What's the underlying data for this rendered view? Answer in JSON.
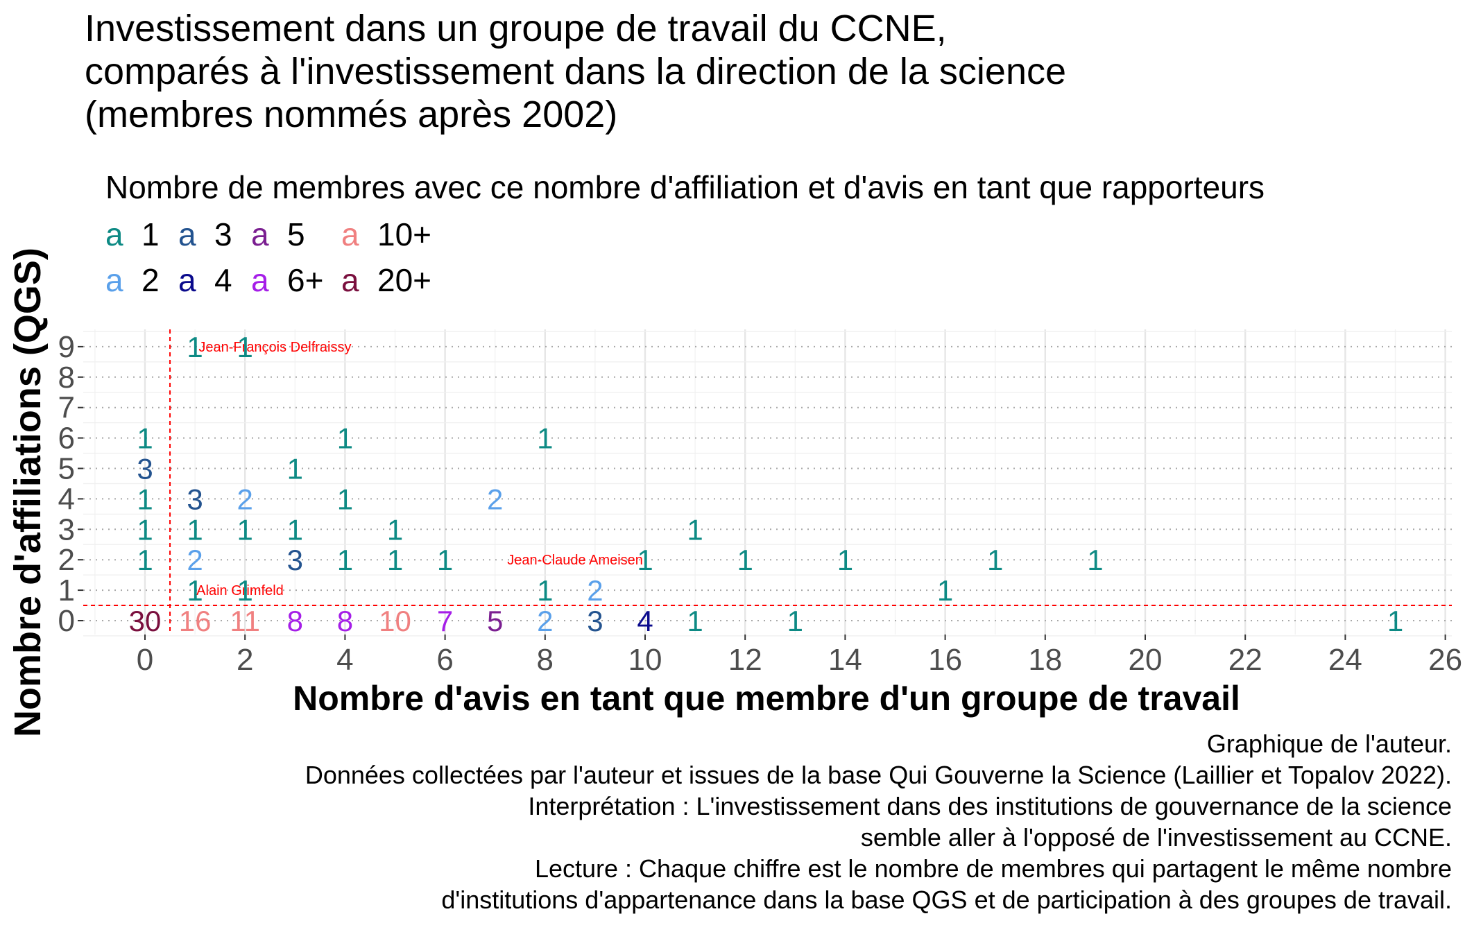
{
  "title_lines": [
    "Investissement dans un groupe de travail du CCNE,",
    "comparés à l'investissement dans la direction de la science",
    "(membres nommés après 2002)"
  ],
  "legend": {
    "title": "Nombre de membres avec ce nombre d'affiliation et d'avis en tant que rapporteurs",
    "key_glyph": "a",
    "items": [
      {
        "label": "1",
        "color": "#0d8a84"
      },
      {
        "label": "2",
        "color": "#5aa0ea"
      },
      {
        "label": "3",
        "color": "#23538f"
      },
      {
        "label": "4",
        "color": "#0a0a8c"
      },
      {
        "label": "5",
        "color": "#7b1f91"
      },
      {
        "label": "6+",
        "color": "#a51ee8"
      },
      {
        "label": "10+",
        "color": "#f08080"
      },
      {
        "label": "20+",
        "color": "#7a0f3e"
      }
    ]
  },
  "caption_lines": [
    "Graphique de l'auteur.",
    "Données collectées par l'auteur et issues de la base Qui Gouverne la Science (Laillier et Topalov 2022).",
    "Interprétation : L'investissement dans des institutions de gouvernance de la science",
    "semble aller à l'opposé de l'investissement au CCNE.",
    "Lecture : Chaque chiffre est le nombre de membres qui partagent le même nombre",
    "d'institutions d'appartenance dans la base QGS et de participation à des groupes de travail."
  ],
  "chart_data": {
    "type": "scatter",
    "xlabel": "Nombre d'avis en tant que membre d'un groupe de travail",
    "ylabel": "Nombre d'affiliations (QGS)",
    "xlim": [
      -1,
      26.2
    ],
    "ylim": [
      -0.5,
      9.5
    ],
    "xticks": [
      0,
      2,
      4,
      6,
      8,
      10,
      12,
      14,
      16,
      18,
      20,
      22,
      24,
      26
    ],
    "yticks": [
      0,
      1,
      2,
      3,
      4,
      5,
      6,
      7,
      8,
      9
    ],
    "reference_lines": {
      "vertical_x": 0.5,
      "horizontal_y": 0.5,
      "color": "#ff0000"
    },
    "points": [
      {
        "x": 1,
        "y": 9,
        "n": 1,
        "cat": "1"
      },
      {
        "x": 2,
        "y": 9,
        "n": 1,
        "cat": "1"
      },
      {
        "x": 0,
        "y": 6,
        "n": 1,
        "cat": "1"
      },
      {
        "x": 4,
        "y": 6,
        "n": 1,
        "cat": "1"
      },
      {
        "x": 8,
        "y": 6,
        "n": 1,
        "cat": "1"
      },
      {
        "x": 0,
        "y": 5,
        "n": 3,
        "cat": "3"
      },
      {
        "x": 3,
        "y": 5,
        "n": 1,
        "cat": "1"
      },
      {
        "x": 0,
        "y": 4,
        "n": 1,
        "cat": "1"
      },
      {
        "x": 1,
        "y": 4,
        "n": 3,
        "cat": "3"
      },
      {
        "x": 2,
        "y": 4,
        "n": 2,
        "cat": "2"
      },
      {
        "x": 4,
        "y": 4,
        "n": 1,
        "cat": "1"
      },
      {
        "x": 7,
        "y": 4,
        "n": 2,
        "cat": "2"
      },
      {
        "x": 0,
        "y": 3,
        "n": 1,
        "cat": "1"
      },
      {
        "x": 1,
        "y": 3,
        "n": 1,
        "cat": "1"
      },
      {
        "x": 2,
        "y": 3,
        "n": 1,
        "cat": "1"
      },
      {
        "x": 3,
        "y": 3,
        "n": 1,
        "cat": "1"
      },
      {
        "x": 5,
        "y": 3,
        "n": 1,
        "cat": "1"
      },
      {
        "x": 11,
        "y": 3,
        "n": 1,
        "cat": "1"
      },
      {
        "x": 0,
        "y": 2,
        "n": 1,
        "cat": "1"
      },
      {
        "x": 1,
        "y": 2,
        "n": 2,
        "cat": "2"
      },
      {
        "x": 3,
        "y": 2,
        "n": 3,
        "cat": "3"
      },
      {
        "x": 4,
        "y": 2,
        "n": 1,
        "cat": "1"
      },
      {
        "x": 5,
        "y": 2,
        "n": 1,
        "cat": "1"
      },
      {
        "x": 6,
        "y": 2,
        "n": 1,
        "cat": "1"
      },
      {
        "x": 10,
        "y": 2,
        "n": 1,
        "cat": "1"
      },
      {
        "x": 12,
        "y": 2,
        "n": 1,
        "cat": "1"
      },
      {
        "x": 14,
        "y": 2,
        "n": 1,
        "cat": "1"
      },
      {
        "x": 17,
        "y": 2,
        "n": 1,
        "cat": "1"
      },
      {
        "x": 19,
        "y": 2,
        "n": 1,
        "cat": "1"
      },
      {
        "x": 1,
        "y": 1,
        "n": 1,
        "cat": "1"
      },
      {
        "x": 2,
        "y": 1,
        "n": 1,
        "cat": "1"
      },
      {
        "x": 8,
        "y": 1,
        "n": 1,
        "cat": "1"
      },
      {
        "x": 9,
        "y": 1,
        "n": 2,
        "cat": "2"
      },
      {
        "x": 16,
        "y": 1,
        "n": 1,
        "cat": "1"
      },
      {
        "x": 0,
        "y": 0,
        "n": 30,
        "cat": "20+"
      },
      {
        "x": 1,
        "y": 0,
        "n": 16,
        "cat": "10+"
      },
      {
        "x": 2,
        "y": 0,
        "n": 11,
        "cat": "10+"
      },
      {
        "x": 3,
        "y": 0,
        "n": 8,
        "cat": "6+"
      },
      {
        "x": 4,
        "y": 0,
        "n": 8,
        "cat": "6+"
      },
      {
        "x": 5,
        "y": 0,
        "n": 10,
        "cat": "10+"
      },
      {
        "x": 6,
        "y": 0,
        "n": 7,
        "cat": "6+"
      },
      {
        "x": 7,
        "y": 0,
        "n": 5,
        "cat": "5"
      },
      {
        "x": 8,
        "y": 0,
        "n": 2,
        "cat": "2"
      },
      {
        "x": 9,
        "y": 0,
        "n": 3,
        "cat": "3"
      },
      {
        "x": 10,
        "y": 0,
        "n": 4,
        "cat": "4"
      },
      {
        "x": 11,
        "y": 0,
        "n": 1,
        "cat": "1"
      },
      {
        "x": 13,
        "y": 0,
        "n": 1,
        "cat": "1"
      },
      {
        "x": 25,
        "y": 0,
        "n": 1,
        "cat": "1"
      }
    ],
    "annotations": [
      {
        "text": "Jean-François Delfraissy",
        "x": 2.6,
        "y": 9,
        "color": "#ff0000"
      },
      {
        "text": "Jean-Claude Ameisen",
        "x": 8.6,
        "y": 2,
        "color": "#ff0000"
      },
      {
        "text": "Alain Grimfeld",
        "x": 1.9,
        "y": 1,
        "color": "#ff0000"
      }
    ]
  }
}
